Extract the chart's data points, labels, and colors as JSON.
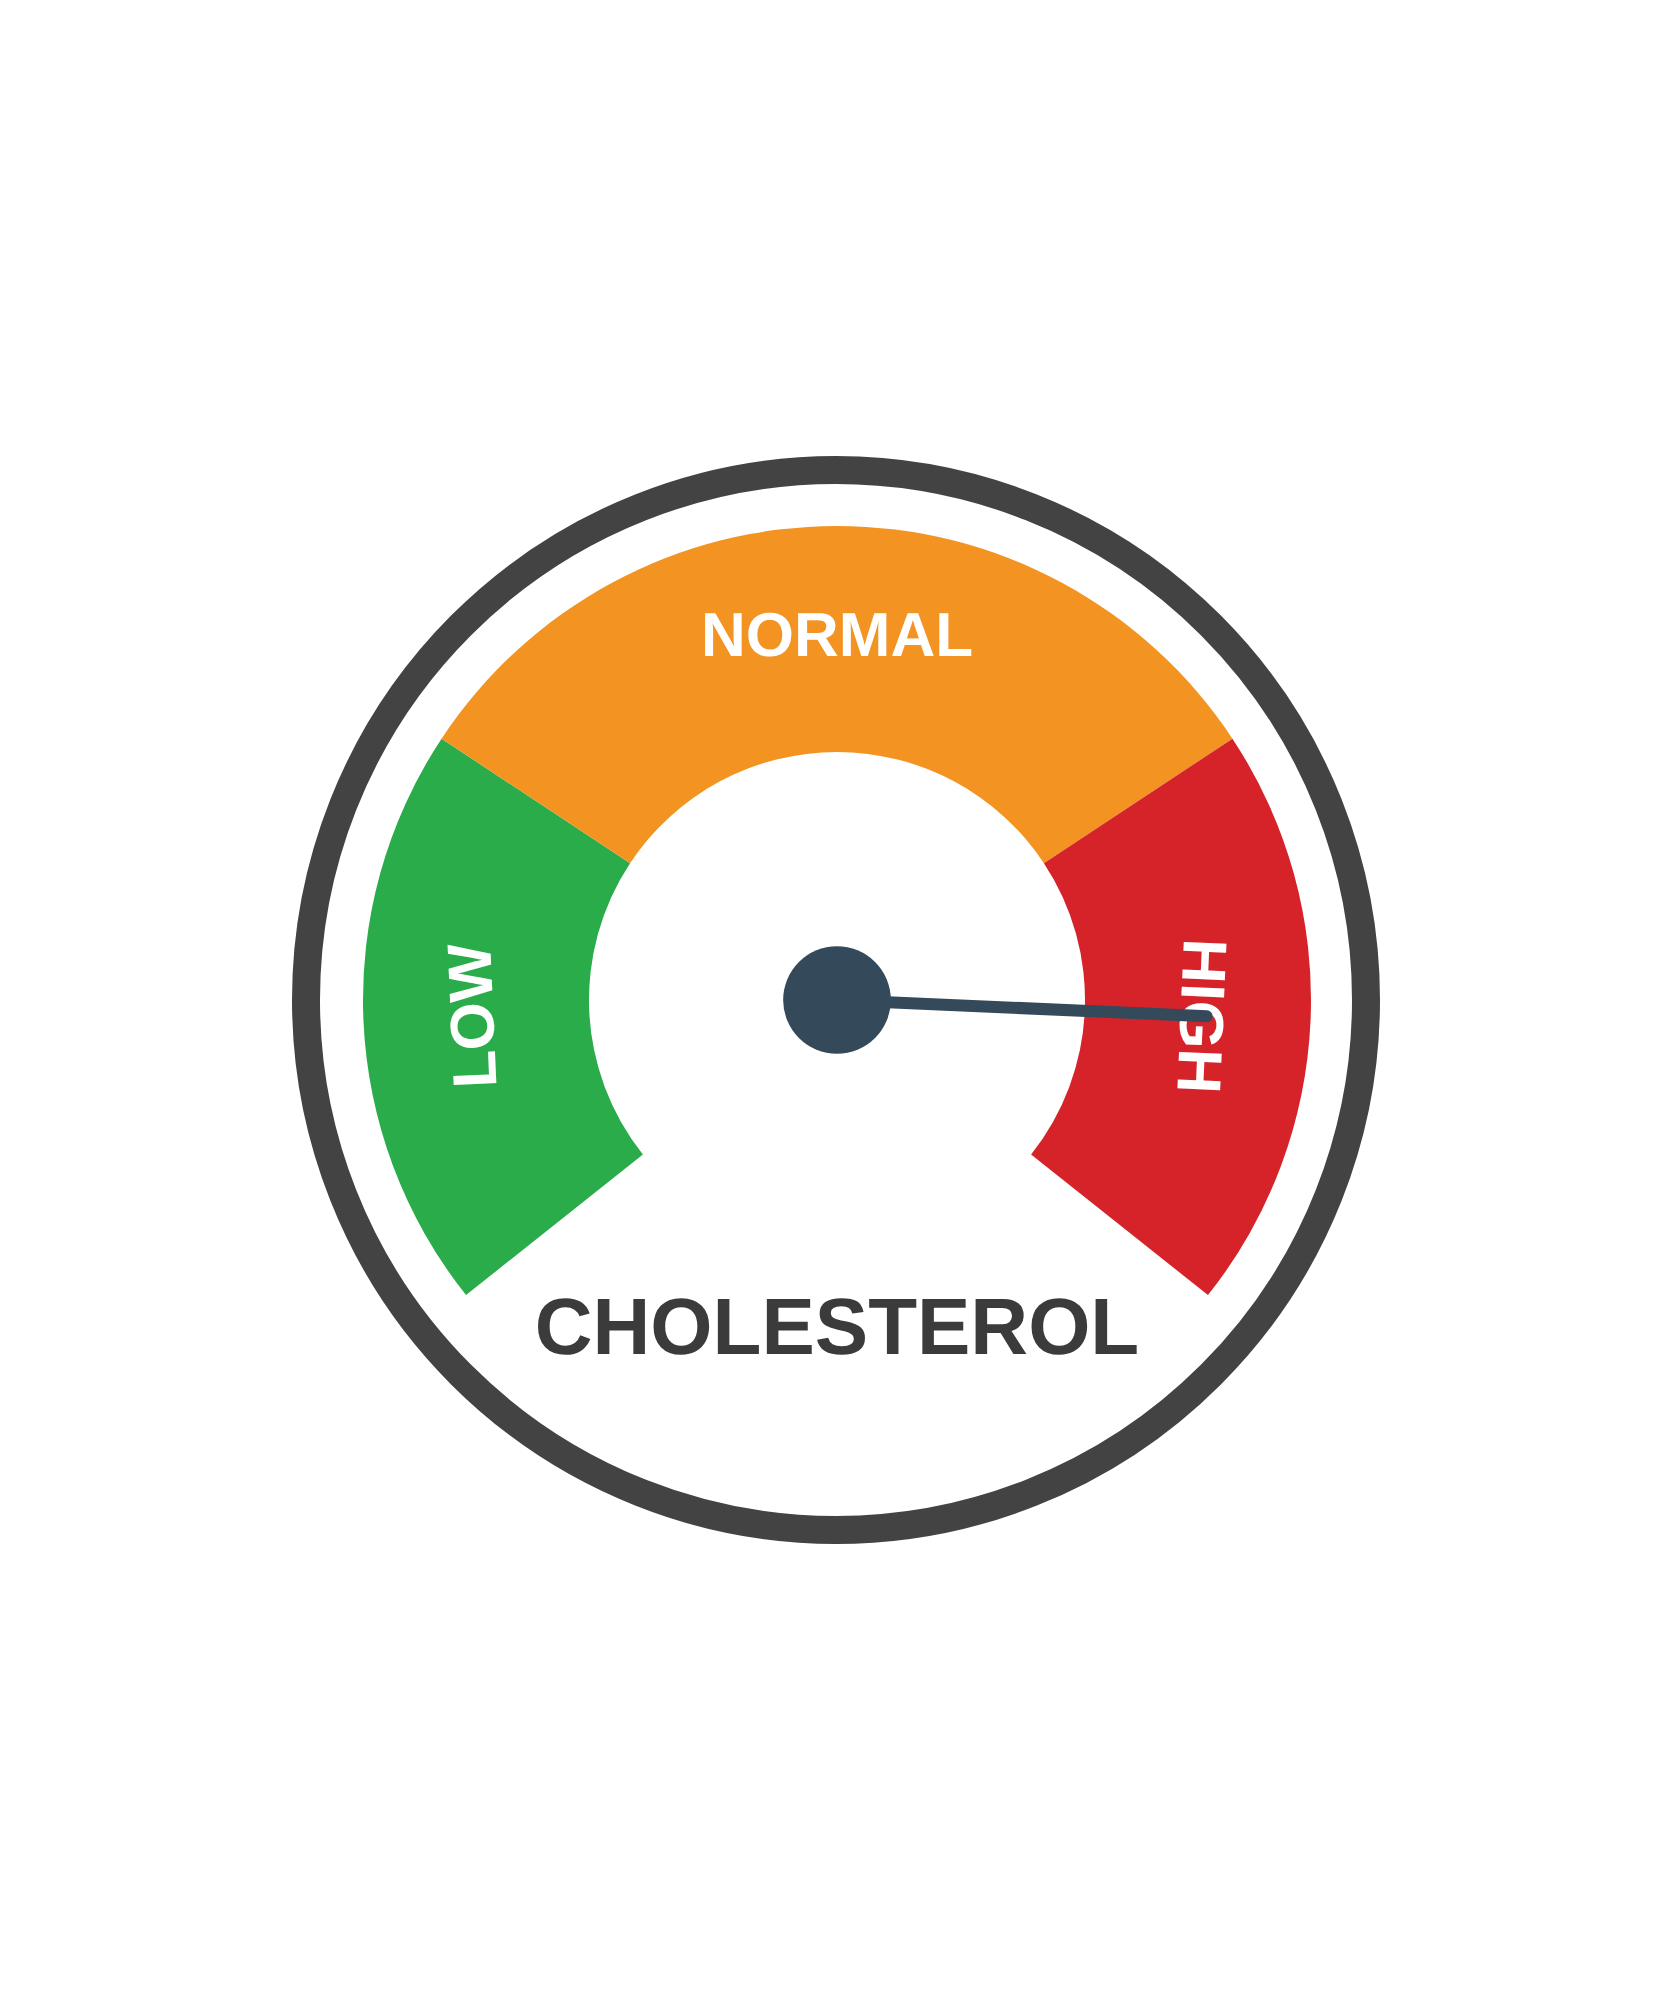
{
  "chart_data": {
    "type": "donut",
    "title": "CHOLESTEROL",
    "categories": [
      "LOW",
      "NORMAL",
      "HIGH"
    ],
    "values": [
      28,
      44,
      28
    ],
    "colors": [
      "#2aac4a",
      "#f39422",
      "#d6232a"
    ],
    "needle": "HIGH"
  }
}
